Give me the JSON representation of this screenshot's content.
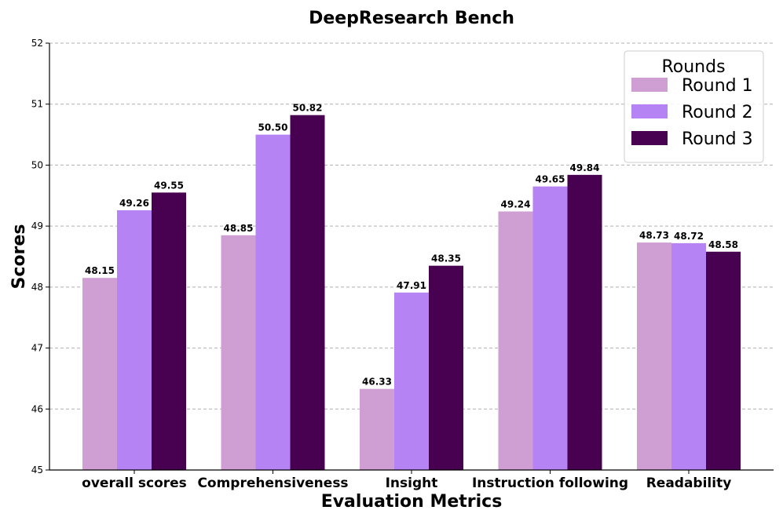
{
  "chart_data": {
    "type": "bar",
    "title": "DeepResearch Bench",
    "xlabel": "Evaluation Metrics",
    "ylabel": "Scores",
    "ylim": [
      45,
      52
    ],
    "yticks": [
      45,
      46,
      47,
      48,
      49,
      50,
      51,
      52
    ],
    "grid": true,
    "legend": {
      "title": "Rounds",
      "placement": "top-right"
    },
    "categories": [
      "overall scores",
      "Comprehensiveness",
      "Insight",
      "Instruction following",
      "Readability"
    ],
    "series": [
      {
        "name": "Round 1",
        "color": "#cf9fd4",
        "values": [
          48.15,
          48.85,
          46.33,
          49.24,
          48.73
        ],
        "labels": [
          "48.15",
          "48.85",
          "46.33",
          "49.24",
          "48.73"
        ]
      },
      {
        "name": "Round 2",
        "color": "#b683f5",
        "values": [
          49.26,
          50.5,
          47.91,
          49.65,
          48.72
        ],
        "labels": [
          "49.26",
          "50.50",
          "47.91",
          "49.65",
          "48.72"
        ]
      },
      {
        "name": "Round 3",
        "color": "#480050",
        "values": [
          49.55,
          50.82,
          48.35,
          49.84,
          48.58
        ],
        "labels": [
          "49.55",
          "50.82",
          "48.35",
          "49.84",
          "48.58"
        ]
      }
    ]
  }
}
